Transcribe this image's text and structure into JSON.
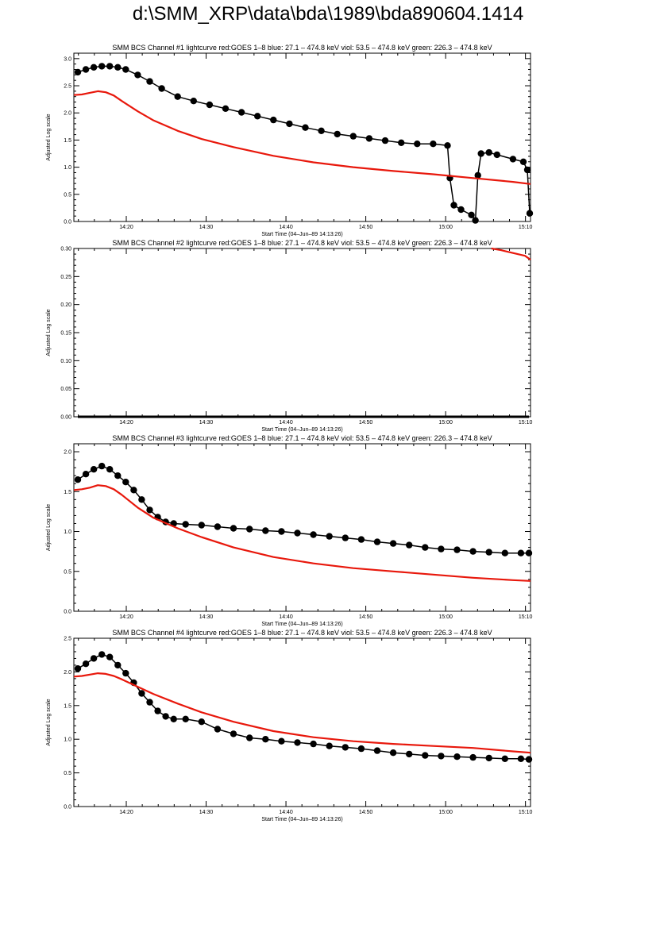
{
  "page_title": "d:\\SMM_XRP\\data\\bda\\1989\\bda890604.1414",
  "colors": {
    "bcs": "#000000",
    "goes": "#e8180c",
    "axes": "#000000"
  },
  "chart_data": [
    {
      "type": "scatter",
      "title": "SMM BCS Channel #1 lightcurve  red:GOES 1–8  blue: 27.1 – 474.8 keV  viol: 53.5 – 474.8 keV  green: 226.3 – 474.8 keV",
      "xlabel": "Start Time (04–Jun–89 14:13:26)",
      "ylabel": "Adjusted Log scale",
      "x_unit": "minutes after 14:13:26",
      "xlim": [
        0,
        57.2
      ],
      "ylim": [
        0,
        3.1
      ],
      "x_ticks": [
        "14:20",
        "14:30",
        "14:40",
        "14:50",
        "15:00",
        "15:10"
      ],
      "y_ticks": [
        "0.0",
        "0.5",
        "1.0",
        "1.5",
        "2.0",
        "2.5",
        "3.0"
      ],
      "grid": false,
      "series": [
        {
          "style": "dots",
          "color": "#000000",
          "x": [
            0.5,
            1.5,
            2.5,
            3.5,
            4.5,
            5.5,
            6.5,
            8,
            9.5,
            11,
            13,
            15,
            17,
            19,
            21,
            23,
            25,
            27,
            29,
            31,
            33,
            35,
            37,
            39,
            41,
            43,
            45,
            46.8,
            47.1,
            47.6,
            48.5,
            49.8,
            50.3,
            50.6,
            51,
            52,
            53,
            55,
            56.3,
            56.8,
            57.1
          ],
          "y": [
            2.75,
            2.8,
            2.84,
            2.86,
            2.86,
            2.84,
            2.8,
            2.7,
            2.58,
            2.45,
            2.3,
            2.22,
            2.15,
            2.08,
            2.01,
            1.94,
            1.87,
            1.8,
            1.73,
            1.67,
            1.61,
            1.57,
            1.53,
            1.49,
            1.45,
            1.43,
            1.43,
            1.4,
            0.8,
            0.3,
            0.22,
            0.12,
            0.02,
            0.85,
            1.25,
            1.27,
            1.23,
            1.15,
            1.1,
            0.95,
            0.15
          ]
        },
        {
          "style": "line",
          "color": "#e8180c",
          "x": [
            0,
            1,
            2,
            3,
            4,
            5,
            6,
            8,
            10,
            13,
            16,
            20,
            25,
            30,
            35,
            40,
            45,
            50,
            55,
            57.2
          ],
          "y": [
            2.33,
            2.34,
            2.37,
            2.4,
            2.38,
            2.32,
            2.22,
            2.03,
            1.86,
            1.67,
            1.52,
            1.37,
            1.21,
            1.09,
            1.0,
            0.93,
            0.87,
            0.8,
            0.73,
            0.69
          ]
        }
      ]
    },
    {
      "type": "scatter",
      "title": "SMM BCS Channel #2 lightcurve  red:GOES 1–8  blue: 27.1 – 474.8 keV  viol: 53.5 – 474.8 keV  green: 226.3 – 474.8 keV",
      "xlabel": "Start Time (04–Jun–89 14:13:26)",
      "ylabel": "Adjusted Log scale",
      "x_unit": "minutes after 14:13:26",
      "xlim": [
        0,
        57.2
      ],
      "ylim": [
        0,
        0.3
      ],
      "x_ticks": [
        "14:20",
        "14:30",
        "14:40",
        "14:50",
        "15:00",
        "15:10"
      ],
      "y_ticks": [
        "0.00",
        "0.05",
        "0.10",
        "0.15",
        "0.20",
        "0.25",
        "0.30"
      ],
      "grid": false,
      "series": [
        {
          "style": "flatline",
          "color": "#000000",
          "x": [
            0.5,
            57
          ],
          "y": [
            0.0,
            0.0
          ]
        },
        {
          "style": "line",
          "color": "#e8180c",
          "x": [
            52.3,
            53.5,
            55,
            56.5,
            57.2
          ],
          "y": [
            0.3,
            0.297,
            0.292,
            0.287,
            0.28
          ]
        }
      ]
    },
    {
      "type": "scatter",
      "title": "SMM BCS Channel #3 lightcurve  red:GOES 1–8  blue: 27.1 – 474.8 keV  viol: 53.5 – 474.8 keV  green: 226.3 – 474.8 keV",
      "xlabel": "Start Time (04–Jun–89 14:13:26)",
      "ylabel": "Adjusted Log scale",
      "x_unit": "minutes after 14:13:26",
      "xlim": [
        0,
        57.2
      ],
      "ylim": [
        0,
        2.1
      ],
      "x_ticks": [
        "14:20",
        "14:30",
        "14:40",
        "14:50",
        "15:00",
        "15:10"
      ],
      "y_ticks": [
        "0.0",
        "0.5",
        "1.0",
        "1.5",
        "2.0"
      ],
      "grid": false,
      "series": [
        {
          "style": "dots",
          "color": "#000000",
          "x": [
            0.5,
            1.5,
            2.5,
            3.5,
            4.5,
            5.5,
            6.5,
            7.5,
            8.5,
            9.5,
            10.5,
            11.5,
            12.5,
            14,
            16,
            18,
            20,
            22,
            24,
            26,
            28,
            30,
            32,
            34,
            36,
            38,
            40,
            42,
            44,
            46,
            48,
            50,
            52,
            54,
            56,
            57
          ],
          "y": [
            1.65,
            1.72,
            1.78,
            1.82,
            1.78,
            1.7,
            1.62,
            1.52,
            1.4,
            1.27,
            1.18,
            1.12,
            1.1,
            1.09,
            1.08,
            1.06,
            1.04,
            1.03,
            1.01,
            1.0,
            0.98,
            0.96,
            0.94,
            0.92,
            0.9,
            0.87,
            0.85,
            0.83,
            0.8,
            0.78,
            0.77,
            0.75,
            0.74,
            0.73,
            0.73,
            0.73
          ]
        },
        {
          "style": "line",
          "color": "#e8180c",
          "x": [
            0,
            1,
            2,
            3,
            4,
            5,
            6,
            8,
            10,
            13,
            16,
            20,
            25,
            30,
            35,
            40,
            45,
            50,
            55,
            57.2
          ],
          "y": [
            1.52,
            1.53,
            1.55,
            1.58,
            1.57,
            1.53,
            1.46,
            1.3,
            1.17,
            1.04,
            0.93,
            0.8,
            0.68,
            0.6,
            0.54,
            0.5,
            0.46,
            0.42,
            0.39,
            0.38
          ]
        }
      ]
    },
    {
      "type": "scatter",
      "title": "SMM BCS Channel #4 lightcurve  red:GOES 1–8  blue: 27.1 – 474.8 keV  viol: 53.5 – 474.8 keV  green: 226.3 – 474.8 keV",
      "xlabel": "Start Time (04–Jun–89 14:13:26)",
      "ylabel": "Adjusted Log scale",
      "x_unit": "minutes after 14:13:26",
      "xlim": [
        0,
        57.2
      ],
      "ylim": [
        0,
        2.5
      ],
      "x_ticks": [
        "14:20",
        "14:30",
        "14:40",
        "14:50",
        "15:00",
        "15:10"
      ],
      "y_ticks": [
        "0.0",
        "0.5",
        "1.0",
        "1.5",
        "2.0",
        "2.5"
      ],
      "grid": false,
      "series": [
        {
          "style": "dots",
          "color": "#000000",
          "x": [
            0.5,
            1.5,
            2.5,
            3.5,
            4.5,
            5.5,
            6.5,
            7.5,
            8.5,
            9.5,
            10.5,
            11.5,
            12.5,
            14,
            16,
            18,
            20,
            22,
            24,
            26,
            28,
            30,
            32,
            34,
            36,
            38,
            40,
            42,
            44,
            46,
            48,
            50,
            52,
            54,
            56,
            57
          ],
          "y": [
            2.05,
            2.12,
            2.2,
            2.26,
            2.22,
            2.1,
            1.98,
            1.84,
            1.68,
            1.55,
            1.42,
            1.34,
            1.3,
            1.3,
            1.26,
            1.15,
            1.08,
            1.02,
            1.0,
            0.97,
            0.95,
            0.93,
            0.9,
            0.88,
            0.86,
            0.83,
            0.8,
            0.78,
            0.76,
            0.75,
            0.74,
            0.73,
            0.72,
            0.71,
            0.71,
            0.7
          ]
        },
        {
          "style": "line",
          "color": "#e8180c",
          "x": [
            0,
            1,
            2,
            3,
            4,
            5,
            6,
            8,
            10,
            13,
            16,
            20,
            25,
            30,
            35,
            40,
            45,
            50,
            55,
            57.2
          ],
          "y": [
            1.93,
            1.94,
            1.96,
            1.98,
            1.97,
            1.94,
            1.89,
            1.78,
            1.67,
            1.53,
            1.4,
            1.26,
            1.12,
            1.03,
            0.97,
            0.93,
            0.9,
            0.87,
            0.82,
            0.8
          ]
        }
      ]
    }
  ]
}
